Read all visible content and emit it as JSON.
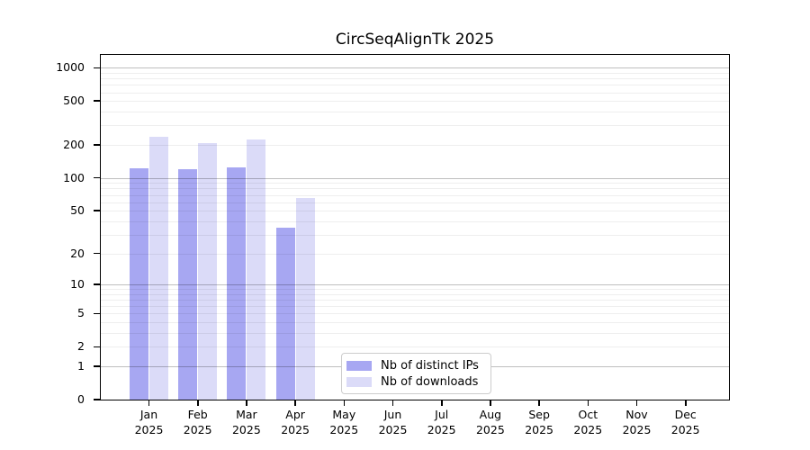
{
  "title": "CircSeqAlignTk 2025",
  "legend": {
    "items": [
      {
        "label": "Nb of distinct IPs",
        "color": "#a7a7f2"
      },
      {
        "label": "Nb of downloads",
        "color": "#dbdbf8"
      }
    ]
  },
  "chart_data": {
    "type": "bar",
    "title": "CircSeqAlignTk 2025",
    "x_months": [
      "Jan",
      "Feb",
      "Mar",
      "Apr",
      "May",
      "Jun",
      "Jul",
      "Aug",
      "Sep",
      "Oct",
      "Nov",
      "Dec"
    ],
    "year_label": "2025",
    "categories": [
      "Jan 2025",
      "Feb 2025",
      "Mar 2025",
      "Apr 2025",
      "May 2025",
      "Jun 2025",
      "Jul 2025",
      "Aug 2025",
      "Sep 2025",
      "Oct 2025",
      "Nov 2025",
      "Dec 2025"
    ],
    "series": [
      {
        "name": "Nb of distinct IPs",
        "color": "#a7a7f2",
        "values": [
          122,
          119,
          125,
          35,
          0,
          0,
          0,
          0,
          0,
          0,
          0,
          0
        ]
      },
      {
        "name": "Nb of downloads",
        "color": "#dbdbf8",
        "values": [
          235,
          208,
          222,
          65,
          0,
          0,
          0,
          0,
          0,
          0,
          0,
          0
        ]
      }
    ],
    "xlabel": "",
    "ylabel": "",
    "y_scale": "log1p",
    "y_ticks": [
      0,
      1,
      2,
      5,
      10,
      20,
      50,
      100,
      200,
      500,
      1000
    ],
    "major_gridlines": [
      1,
      10,
      100,
      1000
    ],
    "minor_gridlines": [
      2,
      3,
      4,
      5,
      6,
      7,
      8,
      9,
      20,
      30,
      40,
      50,
      60,
      70,
      80,
      90,
      200,
      300,
      400,
      500,
      600,
      700,
      800,
      900
    ],
    "ylim": [
      0,
      1280
    ],
    "grid": true,
    "legend_position": "lower center"
  }
}
